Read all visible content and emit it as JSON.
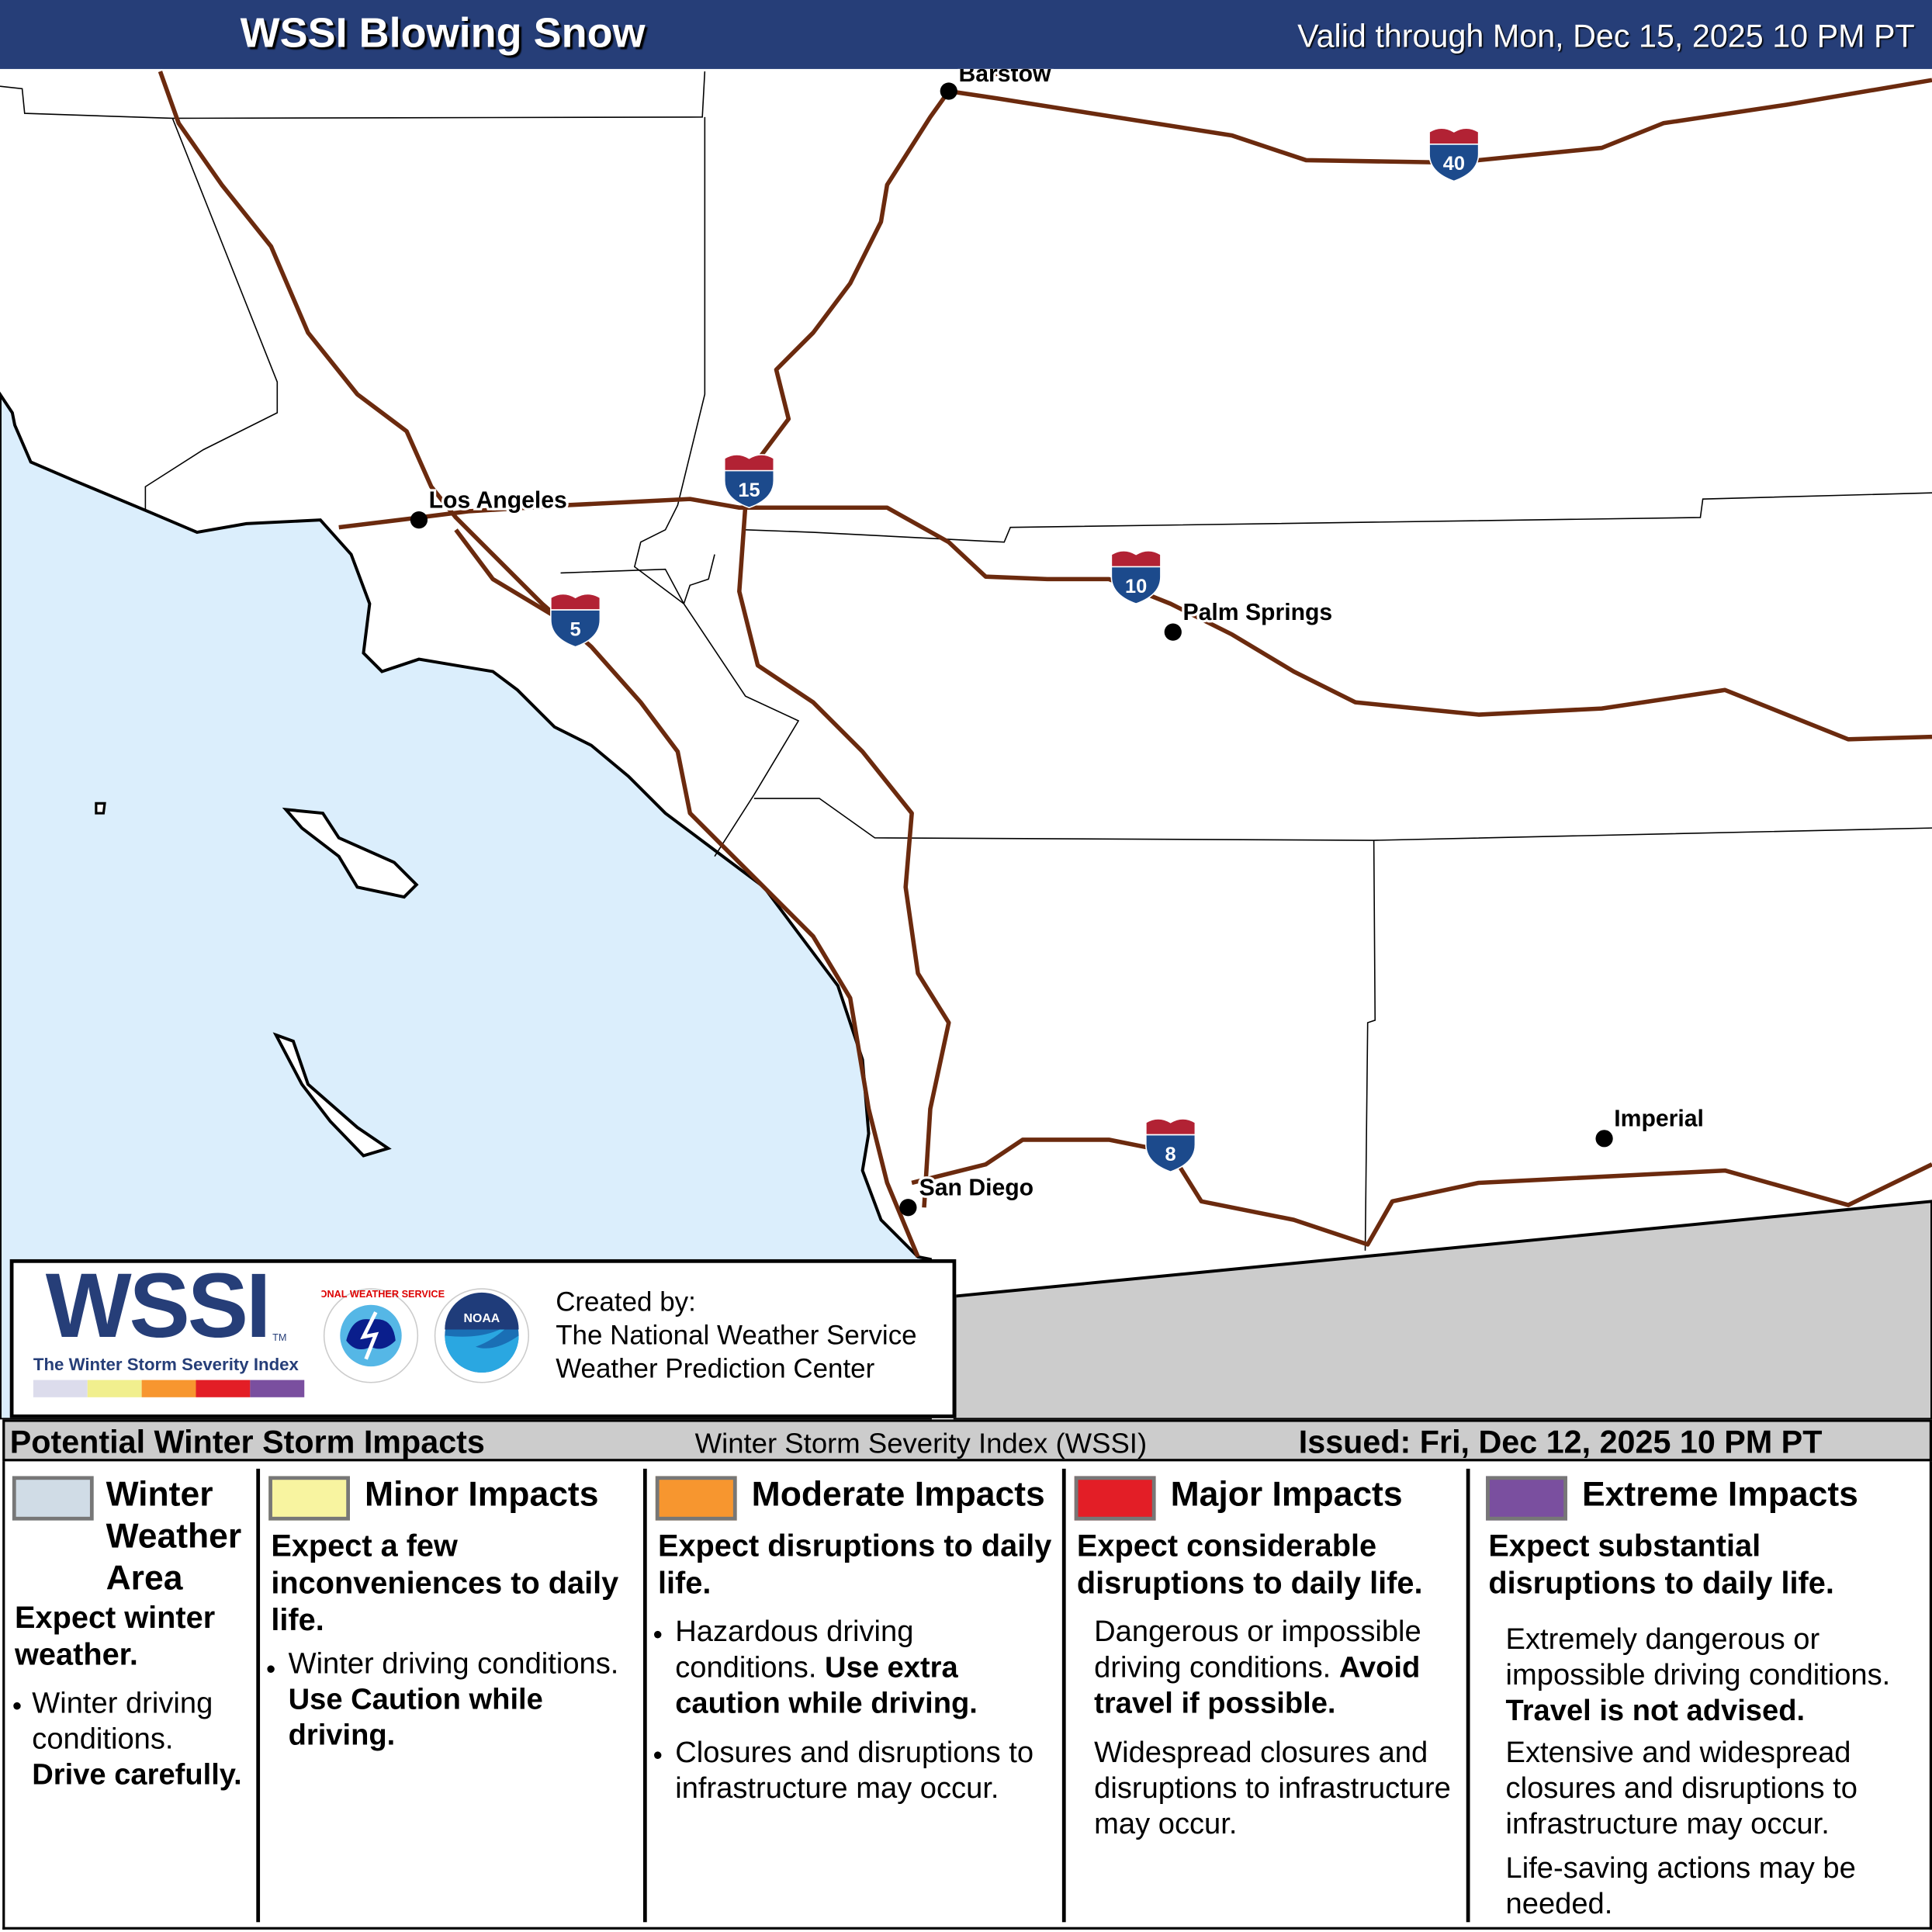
{
  "header": {
    "title": "WSSI Blowing Snow",
    "valid": "Valid through Mon, Dec 15, 2025 10 PM PT"
  },
  "map": {
    "colors": {
      "ocean": "#dbeefc",
      "land": "#ffffff",
      "road": "#6b2a0e",
      "outside": "#cccccc"
    },
    "cities": [
      "Barstow",
      "Los Angeles",
      "Palm Springs",
      "San Diego",
      "Imperial"
    ],
    "interstates": [
      "40",
      "15",
      "10",
      "5",
      "8"
    ]
  },
  "logo": {
    "wssi": "WSSI",
    "tm": "TM",
    "subtitle": "The Winter Storm Severity Index",
    "nws_ring": "NATIONAL WEATHER SERVICE",
    "noaa": "NOAA",
    "created_by": "Created by:",
    "org1": "The National Weather Service",
    "org2": "Weather Prediction Center",
    "strip_colors": [
      "#dcdcec",
      "#f1ef8e",
      "#f7962f",
      "#e31e26",
      "#7a4f9f"
    ]
  },
  "legend_bar": {
    "title": "Potential Winter Storm Impacts",
    "index": "Winter Storm Severity Index (WSSI)",
    "issued": "Issued: Fri, Dec 12, 2025 10 PM PT"
  },
  "categories": [
    {
      "color": "#d0dce6",
      "title": "Winter Weather Area",
      "summary": "Expect winter weather.",
      "b1": "Winter driving conditions.",
      "b1_bold": "Drive carefully."
    },
    {
      "color": "#f8f4a0",
      "title": "Minor Impacts",
      "summary": "Expect a few inconveniences to daily life.",
      "b1": "Winter driving conditions.",
      "b1_bold": "Use Caution while driving."
    },
    {
      "color": "#f7962f",
      "title": "Moderate Impacts",
      "summary": "Expect disruptions to daily life.",
      "b1": "Hazardous driving conditions.",
      "b1_bold": "Use extra caution while driving.",
      "b2": "Closures and disruptions to infrastructure may occur."
    },
    {
      "color": "#e31e26",
      "title": "Major Impacts",
      "summary": "Expect considerable disruptions to daily life.",
      "b1": "Dangerous or impossible driving conditions.",
      "b1_bold": "Avoid travel if possible.",
      "b2": "Widespread closures and disruptions to infrastructure may occur."
    },
    {
      "color": "#7a4f9f",
      "title": "Extreme Impacts",
      "summary": "Expect substantial disruptions to daily life.",
      "b1": "Extremely dangerous or impossible driving conditions.",
      "b1_bold": "Travel is not advised.",
      "b2": "Extensive and widespread closures and disruptions to infrastructure may occur.",
      "b3": "Life-saving actions may be needed."
    }
  ]
}
